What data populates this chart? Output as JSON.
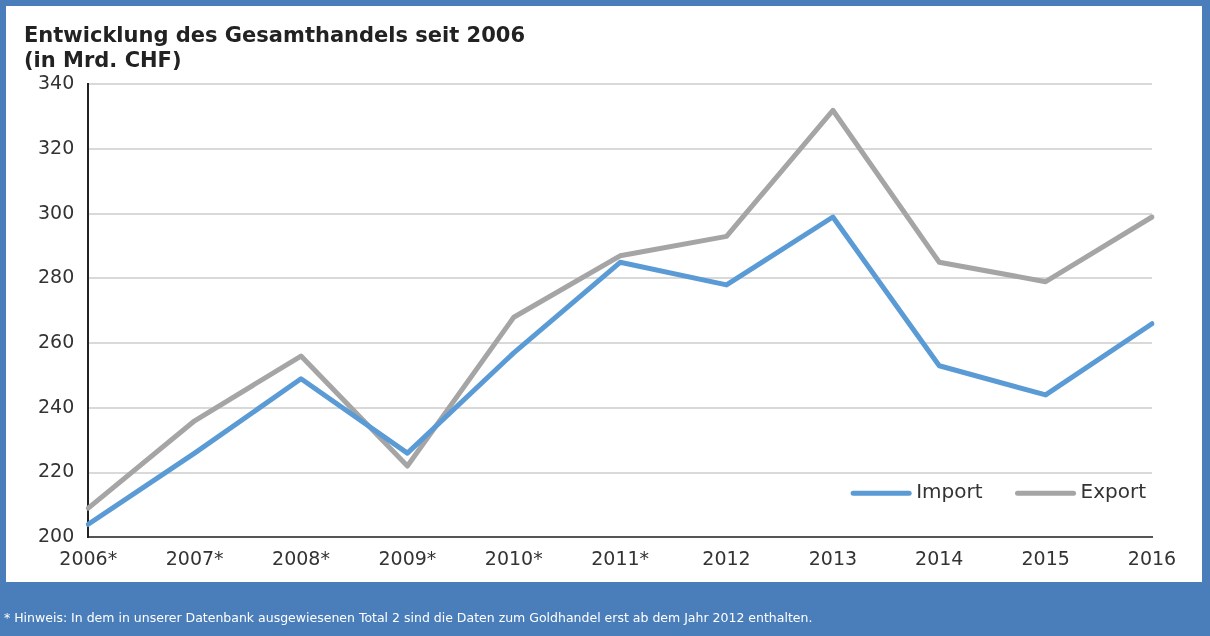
{
  "chart_data": {
    "type": "line",
    "title": "Entwicklung des Gesamthandels seit 2006",
    "subtitle": "(in Mrd. CHF)",
    "categories": [
      "2006*",
      "2007*",
      "2008*",
      "2009*",
      "2010*",
      "2011*",
      "2012",
      "2013",
      "2014",
      "2015",
      "2016"
    ],
    "series": [
      {
        "name": "Import",
        "color": "#5b9bd5",
        "values": [
          204,
          226,
          249,
          226,
          257,
          285,
          278,
          299,
          253,
          244,
          266
        ]
      },
      {
        "name": "Export",
        "color": "#a5a5a5",
        "values": [
          209,
          236,
          256,
          222,
          268,
          287,
          293,
          332,
          285,
          279,
          299
        ]
      }
    ],
    "ylim": [
      200,
      340
    ],
    "yticks": [
      200,
      220,
      240,
      260,
      280,
      300,
      320,
      340
    ],
    "grid": "y",
    "legend": "bottom right",
    "marker": "none",
    "line_style": "solid",
    "annotations": [
      "* Hinweis: In dem in unserer Datenbank ausgewiesenen Total 2 sind die Daten zum Goldhandel erst ab dem Jahr 2012 enthalten."
    ]
  }
}
